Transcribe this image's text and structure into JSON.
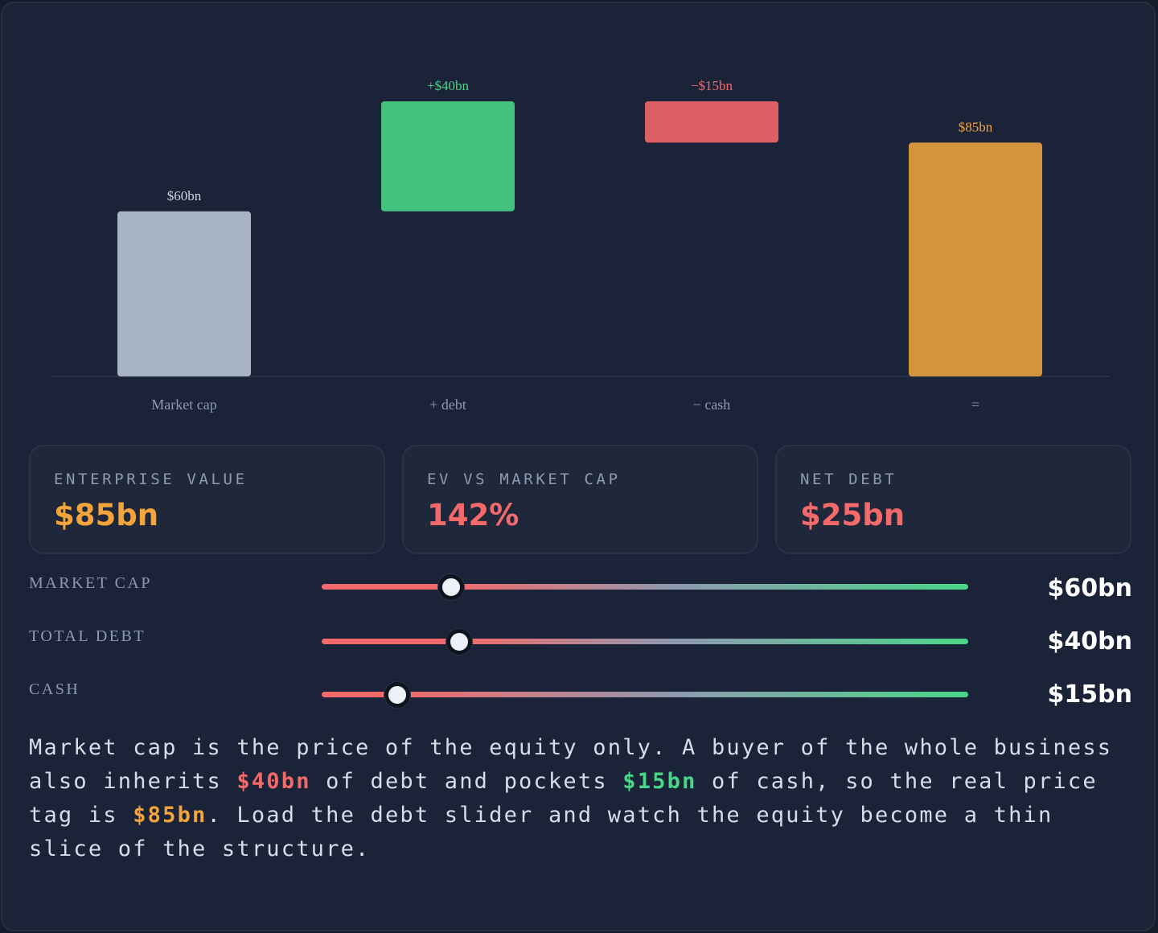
{
  "colors": {
    "background": "#1a2337",
    "market_cap": "#a9b4c4",
    "debt": "#44c27d",
    "cash": "#dd6164",
    "ev": "#d4933c",
    "ev_text": "#f5a43c",
    "red_text": "#f46a6a",
    "green_text": "#49d688",
    "muted": "#8e9ab0"
  },
  "chart_data": {
    "type": "bar",
    "variant": "waterfall",
    "categories": [
      "Market cap",
      "+ debt",
      "− cash",
      "="
    ],
    "steps": [
      {
        "category": "Market cap",
        "start": 0,
        "end": 60,
        "label": "$60bn",
        "color": "#a9b4c4",
        "label_color": "#cfd6e1"
      },
      {
        "category": "+ debt",
        "start": 60,
        "end": 100,
        "label": "+$40bn",
        "color": "#44c27d",
        "label_color": "#49d688"
      },
      {
        "category": "− cash",
        "start": 100,
        "end": 85,
        "label": "−$15bn",
        "color": "#dd6164",
        "label_color": "#f46a6a"
      },
      {
        "category": "=",
        "start": 0,
        "end": 85,
        "label": "$85bn",
        "color": "#d4933c",
        "label_color": "#f5a43c"
      }
    ],
    "ylim": [
      0,
      100
    ],
    "grid": false,
    "legend": "none"
  },
  "cards": [
    {
      "label": "ENTERPRISE VALUE",
      "value": "$85bn",
      "color": "#f5a43c"
    },
    {
      "label": "EV VS MARKET CAP",
      "value": "142%",
      "color": "#f46a6a"
    },
    {
      "label": "NET DEBT",
      "value": "$25bn",
      "color": "#f46a6a"
    }
  ],
  "sliders": [
    {
      "label": "MARKET CAP",
      "value_text": "$60bn",
      "fraction": 0.2
    },
    {
      "label": "TOTAL DEBT",
      "value_text": "$40bn",
      "fraction": 0.213
    },
    {
      "label": "CASH",
      "value_text": "$15bn",
      "fraction": 0.117
    }
  ],
  "description": {
    "part1": "Market cap is the price of the equity only. A buyer of the whole business also inherits ",
    "debt": "$40bn",
    "part2": " of debt and pockets ",
    "cash": "$15bn",
    "part3": " of cash, so the real price tag is ",
    "ev": "$85bn",
    "part4": ". Load the debt slider and watch the equity become a thin slice of the structure."
  }
}
